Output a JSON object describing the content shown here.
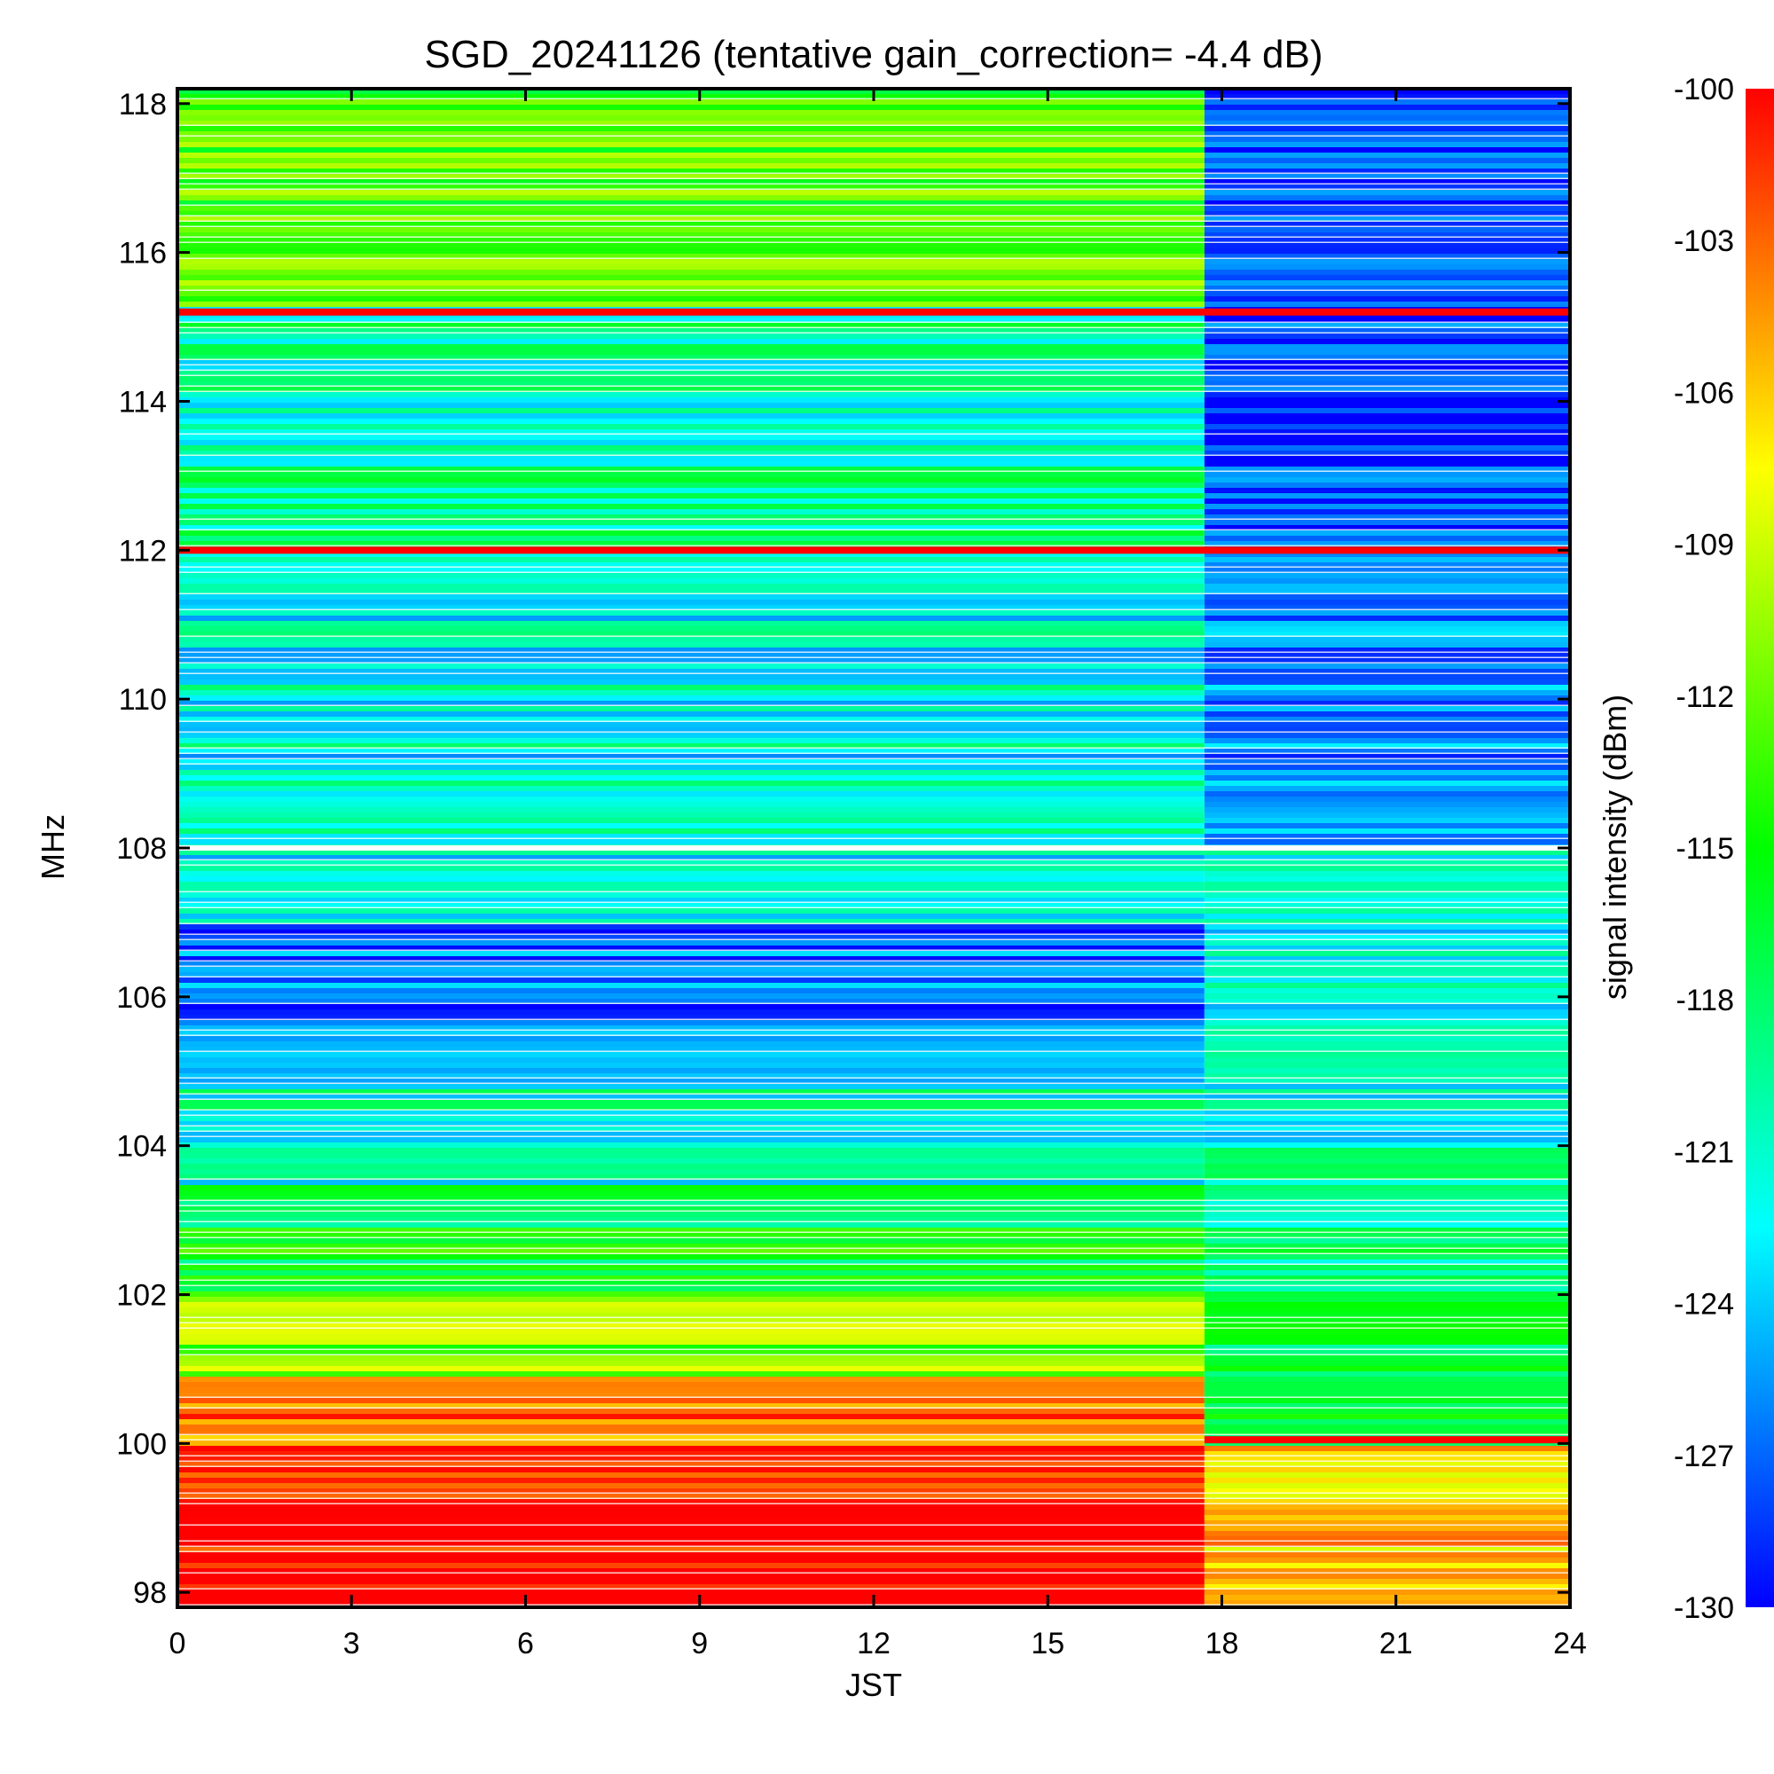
{
  "chart_data": {
    "type": "heatmap",
    "title": "SGD_20241126 (tentative gain_correction= -4.4 dB)",
    "xlabel": "JST",
    "ylabel": "MHz",
    "colorbar_label": "signal intensity (dBm)",
    "x_range": [
      0,
      24
    ],
    "y_range": [
      97.8,
      118.2
    ],
    "x_ticks": [
      "0",
      "3",
      "6",
      "9",
      "12",
      "15",
      "18",
      "21",
      "24"
    ],
    "x_tick_values": [
      0,
      3,
      6,
      9,
      12,
      15,
      18,
      21,
      24
    ],
    "y_ticks": [
      "98",
      "100",
      "102",
      "104",
      "106",
      "108",
      "110",
      "112",
      "114",
      "116",
      "118"
    ],
    "y_tick_values": [
      98,
      100,
      102,
      104,
      106,
      108,
      110,
      112,
      114,
      116,
      118
    ],
    "color_range": [
      -130,
      -100
    ],
    "colorbar_ticks": [
      "-100",
      "-103",
      "-106",
      "-109",
      "-112",
      "-115",
      "-118",
      "-121",
      "-124",
      "-127",
      "-130"
    ],
    "colorbar_tick_values": [
      -100,
      -103,
      -106,
      -109,
      -112,
      -115,
      -118,
      -121,
      -124,
      -127,
      -130
    ],
    "colormap": [
      "#0000ff",
      "#00ffff",
      "#00ff00",
      "#ffff00",
      "#ff0000"
    ],
    "grid": false,
    "day_bands_dBm": [
      {
        "f_min": 97.8,
        "f_max": 100.0,
        "dBm": -100
      },
      {
        "f_min": 100.0,
        "f_max": 100.9,
        "dBm": -104
      },
      {
        "f_min": 100.9,
        "f_max": 102.0,
        "dBm": -111
      },
      {
        "f_min": 102.0,
        "f_max": 103.5,
        "dBm": -116
      },
      {
        "f_min": 103.5,
        "f_max": 104.8,
        "dBm": -121
      },
      {
        "f_min": 104.8,
        "f_max": 107.0,
        "dBm": -127
      },
      {
        "f_min": 107.0,
        "f_max": 108.0,
        "dBm": -123
      },
      {
        "f_min": 108.0,
        "f_max": 112.0,
        "dBm": -122
      },
      {
        "f_min": 112.0,
        "f_max": 115.3,
        "dBm": -120
      },
      {
        "f_min": 115.3,
        "f_max": 118.2,
        "dBm": -113
      }
    ],
    "night_bands_dBm": [
      {
        "f_min": 97.8,
        "f_max": 100.0,
        "dBm": -106
      },
      {
        "f_min": 100.0,
        "f_max": 102.0,
        "dBm": -117
      },
      {
        "f_min": 102.0,
        "f_max": 104.0,
        "dBm": -119
      },
      {
        "f_min": 104.0,
        "f_max": 108.0,
        "dBm": -122
      },
      {
        "f_min": 108.0,
        "f_max": 112.0,
        "dBm": -126
      },
      {
        "f_min": 112.0,
        "f_max": 118.2,
        "dBm": -128
      }
    ],
    "transition_time_JST": 17.7,
    "constant_lines": [
      {
        "freq_MHz": 115.2,
        "dBm": -100,
        "t_start": 0,
        "t_end": 24
      },
      {
        "freq_MHz": 112.0,
        "dBm": -100,
        "t_start": 0,
        "t_end": 24
      },
      {
        "freq_MHz": 100.05,
        "dBm": -100,
        "t_start": 17.7,
        "t_end": 24
      }
    ],
    "gap_freq_MHz": 108.0
  }
}
